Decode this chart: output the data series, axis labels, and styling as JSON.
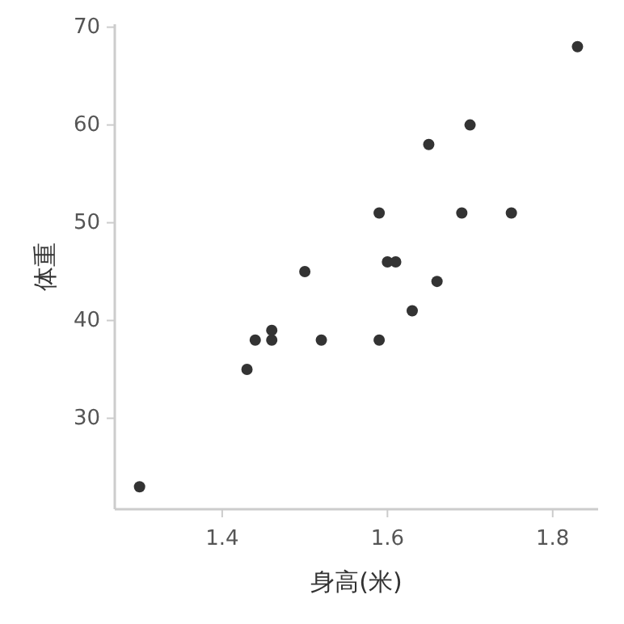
{
  "chart_data": {
    "type": "scatter",
    "xlabel": "身高(米)",
    "ylabel": "体重",
    "x": [
      1.3,
      1.43,
      1.44,
      1.46,
      1.46,
      1.5,
      1.52,
      1.59,
      1.59,
      1.6,
      1.61,
      1.63,
      1.65,
      1.66,
      1.69,
      1.7,
      1.75,
      1.83
    ],
    "values": [
      23,
      35,
      38,
      38,
      39,
      45,
      38,
      38,
      51,
      46,
      46,
      41,
      58,
      44,
      51,
      60,
      51,
      68
    ],
    "color": "#333333",
    "marker": "circle",
    "grid": false,
    "xlim": [
      1.27,
      1.855
    ],
    "xticks": [
      1.4,
      1.6,
      1.8
    ],
    "ylim": [
      20.7,
      70.3
    ],
    "yticks": [
      30,
      40,
      50,
      60,
      70
    ]
  }
}
